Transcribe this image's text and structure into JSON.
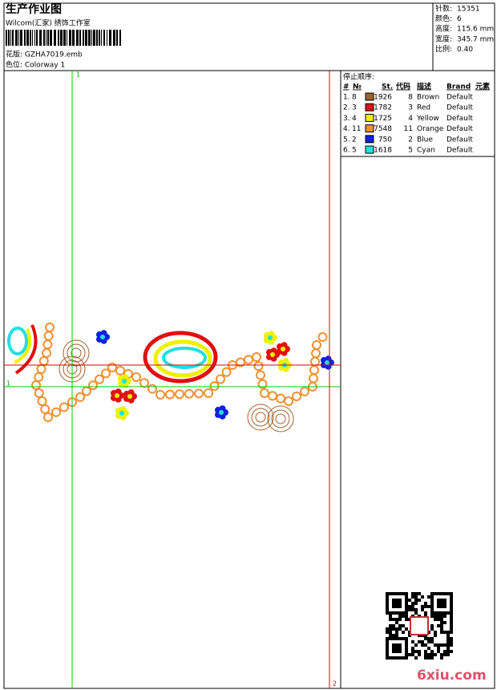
{
  "header": {
    "title": "生产作业图",
    "company": "Wilcom(汇家) 绣饰工作室",
    "design": "花版: GZHA7019.emb",
    "colorway": "色位: Colorway 1"
  },
  "info": [
    {
      "label": "针数:",
      "value": "15351"
    },
    {
      "label": "颜色:",
      "value": "6"
    },
    {
      "label": "高度:",
      "value": "115.6 mm"
    },
    {
      "label": "宽度:",
      "value": "345.7 mm"
    },
    {
      "label": "比例:",
      "value": "0.40"
    }
  ],
  "stop_sequence": {
    "title": "停止顺序:",
    "columns": [
      "#",
      "№",
      "St.",
      "代码",
      "描述",
      "Brand",
      "元素"
    ],
    "rows": [
      {
        "seq": "1.",
        "no": "8",
        "color": "#a0622d",
        "stitches": 1926,
        "code": "8",
        "desc": "Brown",
        "brand": "Default"
      },
      {
        "seq": "2.",
        "no": "3",
        "color": "#e01010",
        "stitches": 1782,
        "code": "3",
        "desc": "Red",
        "brand": "Default"
      },
      {
        "seq": "3.",
        "no": "4",
        "color": "#f0f000",
        "stitches": 1725,
        "code": "4",
        "desc": "Yellow",
        "brand": "Default"
      },
      {
        "seq": "4.",
        "no": "11",
        "color": "#f09030",
        "stitches": 7548,
        "code": "11",
        "desc": "Orange",
        "brand": "Default"
      },
      {
        "seq": "5.",
        "no": "2",
        "color": "#1020e0",
        "stitches": 750,
        "code": "2",
        "desc": "Blue",
        "brand": "Default"
      },
      {
        "seq": "6.",
        "no": "5",
        "color": "#20e0e0",
        "stitches": 1618,
        "code": "5",
        "desc": "Cyan",
        "brand": "Default"
      }
    ]
  },
  "guides": {
    "green_v": "1",
    "green_h": "1",
    "red_v": "2"
  },
  "watermark": "6xiu.com"
}
